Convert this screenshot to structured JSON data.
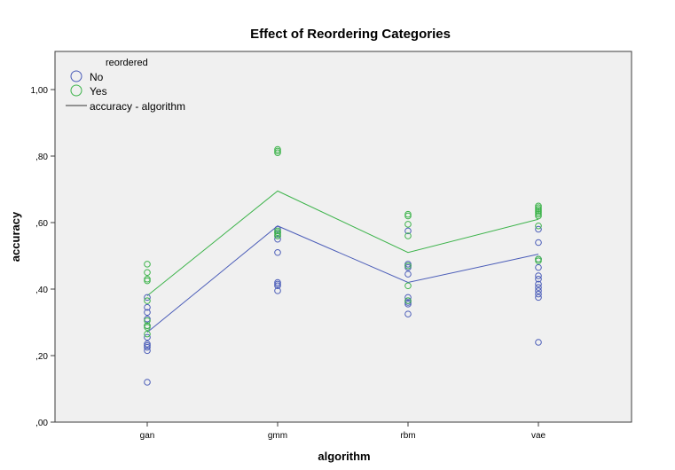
{
  "chart_data": {
    "type": "scatter",
    "title": "Effect of Reordering Categories",
    "xlabel": "algorithm",
    "ylabel": "accuracy",
    "categories": [
      "gan",
      "gmm",
      "rbm",
      "vae"
    ],
    "ylim": [
      0,
      1.1
    ],
    "yticks": [
      0.0,
      0.2,
      0.4,
      0.6,
      0.8,
      1.0
    ],
    "ytick_labels": [
      ",00",
      ",20",
      ",40",
      ",60",
      ",80",
      "1,00"
    ],
    "grid": false,
    "legend": {
      "title": "reordered",
      "placement": "top-left",
      "items": [
        {
          "label": "No",
          "color": "#4a5cb8",
          "marker": "circle"
        },
        {
          "label": "Yes",
          "color": "#3cb34a",
          "marker": "circle"
        },
        {
          "label": "accuracy - algorithm",
          "color": "#333333",
          "marker": "line"
        }
      ]
    },
    "series": [
      {
        "name": "No",
        "color": "#4a5cb8",
        "points": {
          "gan": [
            0.12,
            0.215,
            0.225,
            0.23,
            0.235,
            0.255,
            0.29,
            0.31,
            0.33,
            0.345,
            0.375
          ],
          "gmm": [
            0.395,
            0.41,
            0.415,
            0.42,
            0.51,
            0.55,
            0.56,
            0.57,
            0.58
          ],
          "rbm": [
            0.325,
            0.355,
            0.36,
            0.365,
            0.375,
            0.445,
            0.465,
            0.47,
            0.475,
            0.575
          ],
          "vae": [
            0.24,
            0.375,
            0.385,
            0.395,
            0.405,
            0.415,
            0.43,
            0.44,
            0.465,
            0.49,
            0.54,
            0.58
          ]
        },
        "line": [
          0.27,
          0.59,
          0.42,
          0.505
        ]
      },
      {
        "name": "Yes",
        "color": "#3cb34a",
        "points": {
          "gan": [
            0.265,
            0.285,
            0.29,
            0.305,
            0.365,
            0.425,
            0.43,
            0.45,
            0.475
          ],
          "gmm": [
            0.56,
            0.565,
            0.57,
            0.575,
            0.81,
            0.815,
            0.82
          ],
          "rbm": [
            0.365,
            0.41,
            0.47,
            0.56,
            0.595,
            0.62,
            0.625
          ],
          "vae": [
            0.485,
            0.49,
            0.59,
            0.62,
            0.625,
            0.63,
            0.635,
            0.64,
            0.645,
            0.65
          ]
        },
        "line": [
          0.38,
          0.695,
          0.51,
          0.61
        ]
      }
    ]
  }
}
